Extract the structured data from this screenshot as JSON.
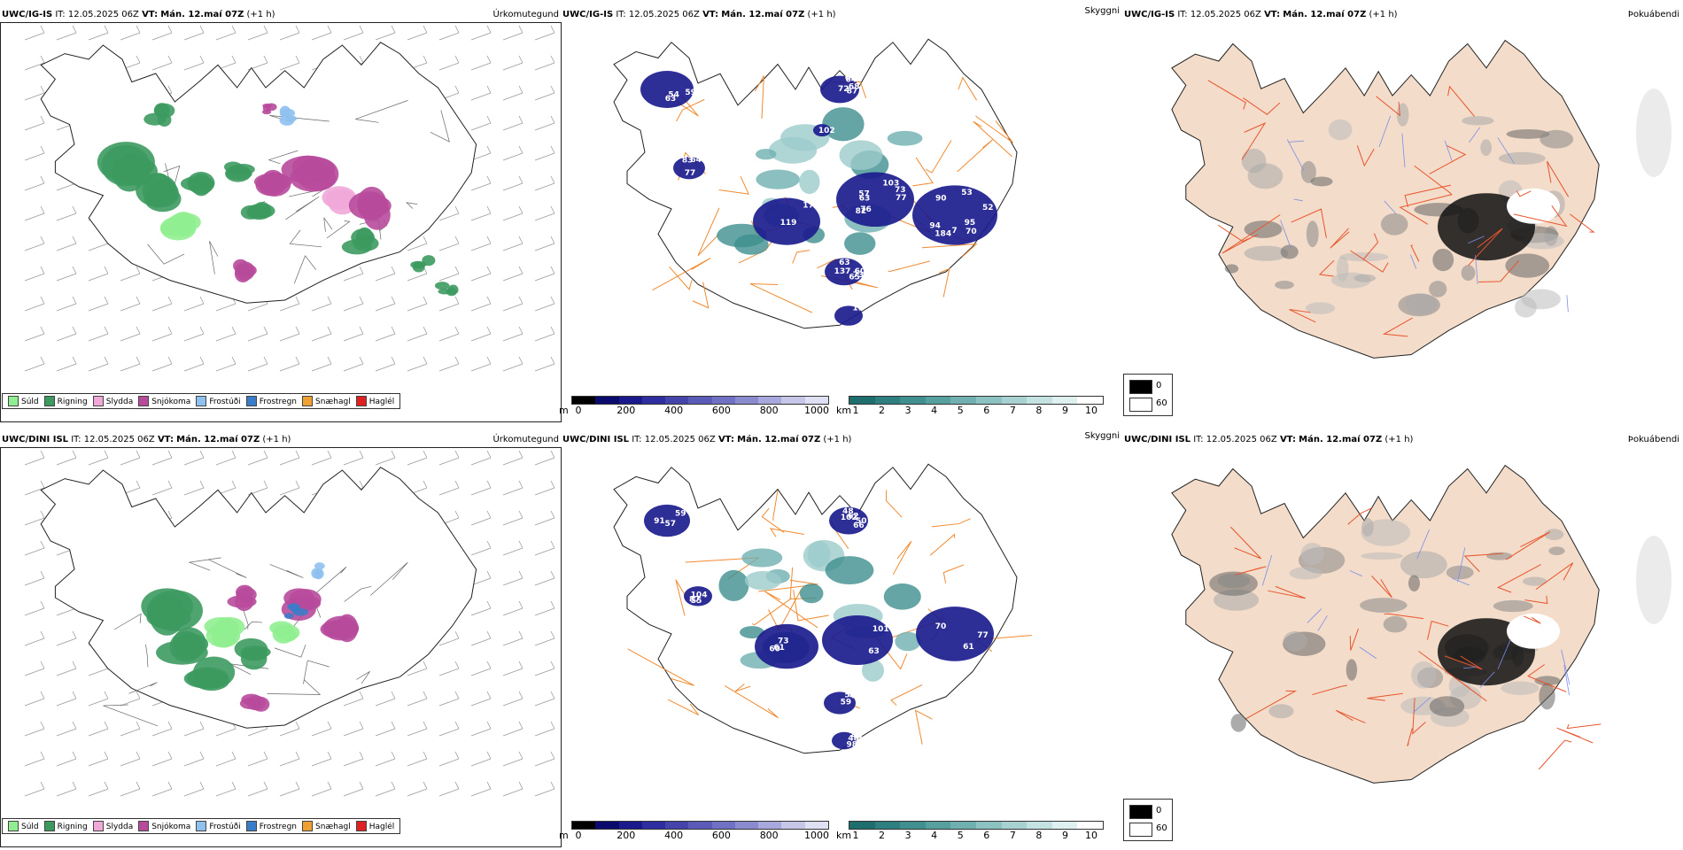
{
  "rows": [
    {
      "model": "UWC/IG-IS",
      "init_label": "IT:",
      "init_time": "12.05.2025 06Z",
      "valid_label": "VT:",
      "valid_time": "Mán. 12.maí 07Z",
      "offset": "(+1 h)",
      "panels": [
        "Úrkomutegund",
        "Skyggni",
        "Þokuábendi"
      ],
      "visibility_labels": [
        "94",
        "70",
        "76",
        "82",
        "68",
        "11",
        "83",
        "67",
        "103",
        "7",
        "54",
        "63",
        "57",
        "53",
        "52",
        "65",
        "184",
        "17",
        "137",
        "63",
        "63",
        "73",
        "64",
        "77",
        "59",
        "102",
        "119",
        "60",
        "90",
        "95",
        "87",
        "77",
        "72",
        "73",
        "64"
      ]
    },
    {
      "model": "UWC/DINI ISL",
      "init_label": "IT:",
      "init_time": "12.05.2025 06Z",
      "valid_label": "VT:",
      "valid_time": "Mán. 12.maí 07Z",
      "offset": "(+1 h)",
      "panels": [
        "Úrkomutegund",
        "Skyggni",
        "Þokuábendi"
      ],
      "visibility_labels": [
        "77",
        "98",
        "91",
        "63",
        "43",
        "55",
        "50",
        "61",
        "45",
        "48",
        "48",
        "66",
        "59",
        "58",
        "61",
        "59",
        "57",
        "60",
        "102",
        "104",
        "73",
        "70",
        "87",
        "62",
        "101"
      ]
    }
  ],
  "precip_legend": [
    {
      "label": "Súld",
      "color": "#90ee90"
    },
    {
      "label": "Rigning",
      "color": "#3c9a5f"
    },
    {
      "label": "Slydda",
      "color": "#f0a8d8"
    },
    {
      "label": "Snjókoma",
      "color": "#b84a9c"
    },
    {
      "label": "Frostúði",
      "color": "#8fc1f0"
    },
    {
      "label": "Frostregn",
      "color": "#3b7cc9"
    },
    {
      "label": "Snæhagl",
      "color": "#f0a030"
    },
    {
      "label": "Haglél",
      "color": "#e02020"
    }
  ],
  "ceiling_bar": {
    "unit": "m",
    "ticks": [
      "0",
      "200",
      "400",
      "600",
      "800",
      "1000"
    ],
    "colors": [
      "#000000",
      "#0a0a6e",
      "#1a1a8c",
      "#2e2ea0",
      "#4444aa",
      "#5a5ab8",
      "#7070c4",
      "#8a8acf",
      "#a8a8dc",
      "#c6c6e8",
      "#e0e0f4"
    ]
  },
  "vis_bar": {
    "unit": "km",
    "ticks": [
      "1",
      "2",
      "3",
      "4",
      "5",
      "6",
      "7",
      "8",
      "9",
      "10"
    ],
    "colors": [
      "#1f6e6e",
      "#2e8080",
      "#409090",
      "#56a0a0",
      "#70b0b0",
      "#8cc2c2",
      "#a8d2d2",
      "#c4e2e2",
      "#dff0f0",
      "#ffffff"
    ]
  },
  "fog_key": {
    "high": "0",
    "low": "60",
    "high_color": "#000000",
    "low_color": "#ffffff"
  },
  "colors": {
    "land_fog": "#f3dcc9",
    "roads_fog": "#e8552e",
    "roads_vis": "#f08a30",
    "rivers": "#7a8ee8"
  }
}
